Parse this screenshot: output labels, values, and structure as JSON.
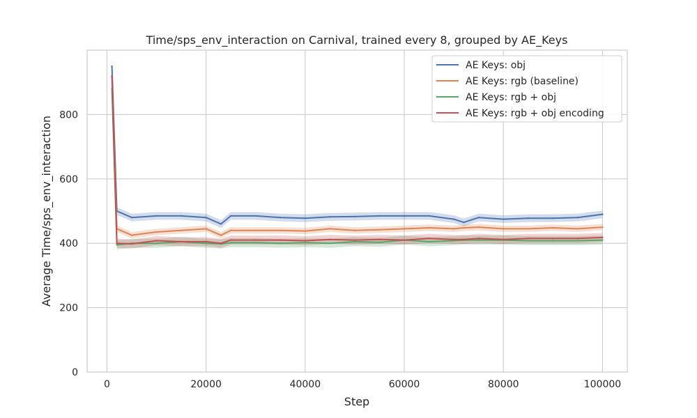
{
  "chart_data": {
    "type": "line",
    "title": "Time/sps_env_interaction on Carnival, trained every 8, grouped by AE_Keys",
    "xlabel": "Step",
    "ylabel": "Average Time/sps_env_interaction",
    "xlim": [
      -4000,
      105000
    ],
    "ylim": [
      0,
      1000
    ],
    "xticks": [
      0,
      20000,
      40000,
      60000,
      80000,
      100000
    ],
    "xtick_labels": [
      "0",
      "20000",
      "40000",
      "60000",
      "80000",
      "100000"
    ],
    "yticks": [
      0,
      200,
      400,
      600,
      800
    ],
    "ytick_labels": [
      "0",
      "200",
      "400",
      "600",
      "800"
    ],
    "grid": true,
    "legend_position": "top-right",
    "x": [
      1000,
      2000,
      5000,
      10000,
      15000,
      20000,
      23000,
      25000,
      30000,
      35000,
      40000,
      45000,
      50000,
      55000,
      60000,
      65000,
      70000,
      72000,
      75000,
      80000,
      85000,
      90000,
      95000,
      100000
    ],
    "series": [
      {
        "name": "AE Keys: obj",
        "color": "#4c72b0",
        "values": [
          950,
          500,
          480,
          485,
          485,
          480,
          460,
          485,
          485,
          480,
          478,
          482,
          483,
          485,
          485,
          485,
          475,
          465,
          480,
          475,
          478,
          478,
          480,
          490
        ],
        "band": 12
      },
      {
        "name": "AE Keys: rgb (baseline)",
        "color": "#dd8452",
        "values": [
          920,
          445,
          425,
          435,
          440,
          445,
          425,
          440,
          440,
          440,
          438,
          445,
          440,
          442,
          445,
          448,
          445,
          448,
          450,
          445,
          445,
          448,
          445,
          450
        ],
        "band": 10
      },
      {
        "name": "AE Keys: rgb + obj",
        "color": "#55a868",
        "values": [
          880,
          395,
          400,
          400,
          405,
          400,
          398,
          402,
          402,
          400,
          402,
          400,
          405,
          403,
          410,
          405,
          408,
          410,
          410,
          410,
          408,
          408,
          408,
          410
        ],
        "band": 14
      },
      {
        "name": "AE Keys: rgb + obj encoding",
        "color": "#c44e52",
        "values": [
          920,
          400,
          398,
          408,
          405,
          405,
          400,
          410,
          410,
          410,
          408,
          412,
          410,
          412,
          410,
          415,
          412,
          412,
          415,
          412,
          415,
          415,
          415,
          418
        ],
        "band": 14
      }
    ]
  }
}
